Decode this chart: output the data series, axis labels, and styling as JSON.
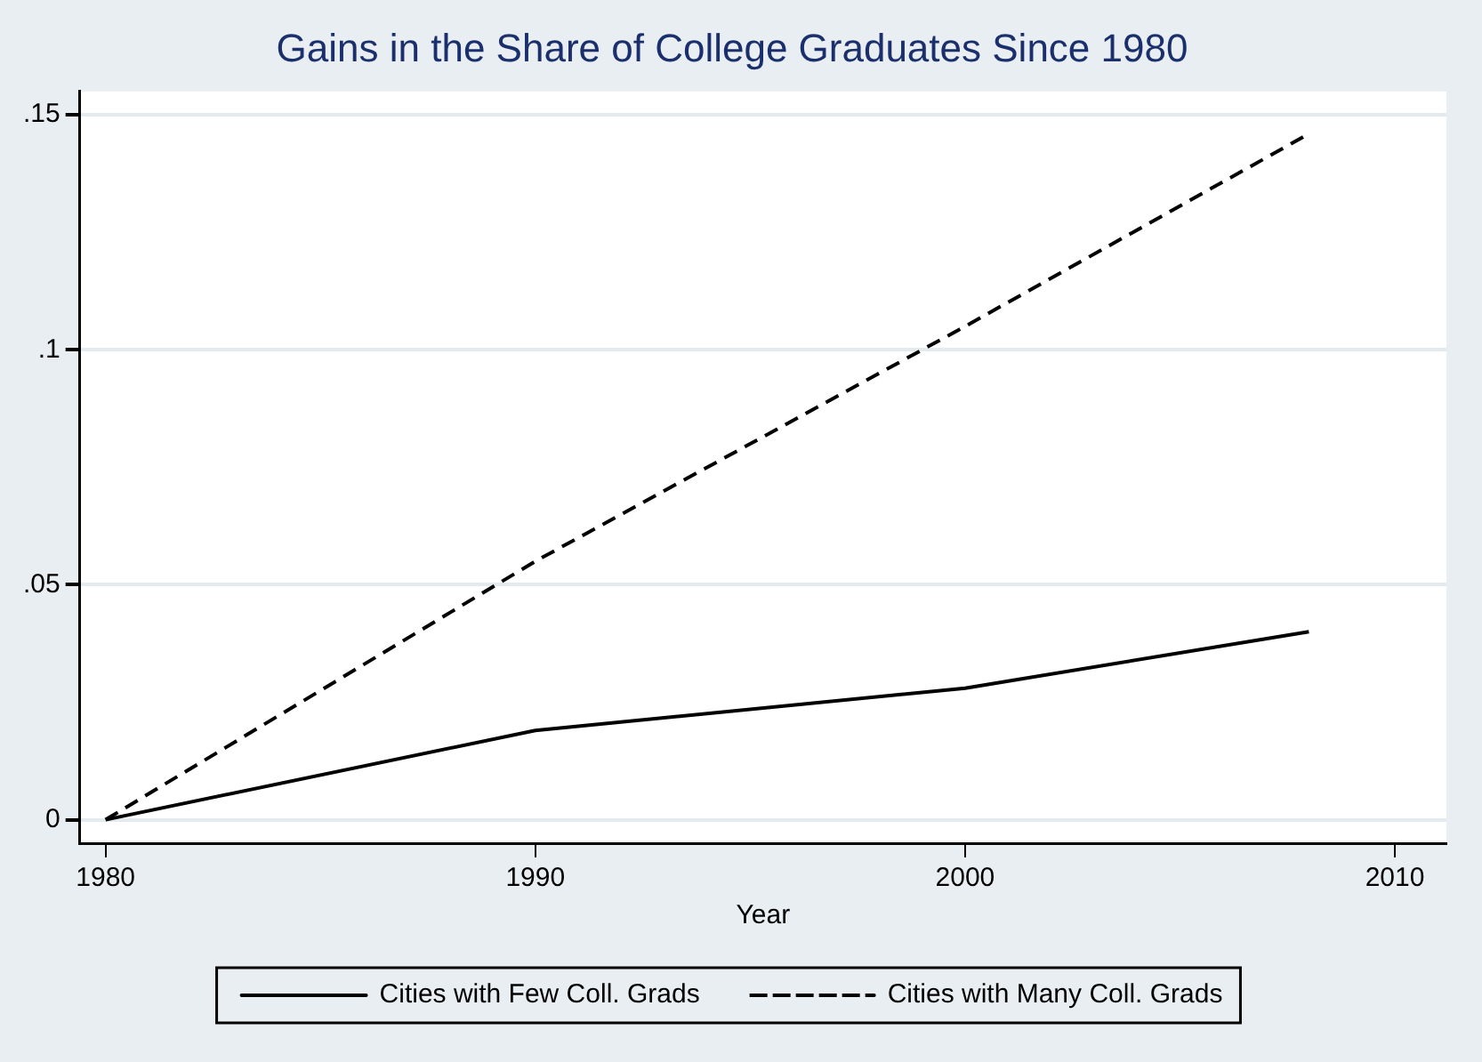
{
  "chart_data": {
    "type": "line",
    "title": "Gains in the Share of College Graduates Since 1980",
    "xlabel": "Year",
    "series": [
      {
        "name": "Cities with Few Coll. Grads",
        "color": "#000000",
        "line_style": "solid",
        "x": [
          1980,
          1990,
          2000,
          2008
        ],
        "values": [
          0,
          0.019,
          0.028,
          0.04
        ]
      },
      {
        "name": "Cities with Many Coll. Grads",
        "color": "#000000",
        "line_style": "dashed",
        "x": [
          1980,
          1990,
          2000,
          2008
        ],
        "values": [
          0,
          0.055,
          0.105,
          0.146
        ]
      }
    ],
    "xlim": [
      1979.4,
      2011.2
    ],
    "xticks": [
      1980,
      1990,
      2000,
      2010
    ],
    "ylim": [
      -0.005,
      0.155
    ],
    "yticks": [
      {
        "value": 0,
        "label": "0"
      },
      {
        "value": 0.05,
        "label": ".05"
      },
      {
        "value": 0.1,
        "label": ".1"
      },
      {
        "value": 0.15,
        "label": ".15"
      }
    ],
    "grid": "y",
    "legend": "bottom",
    "marker": "none"
  }
}
